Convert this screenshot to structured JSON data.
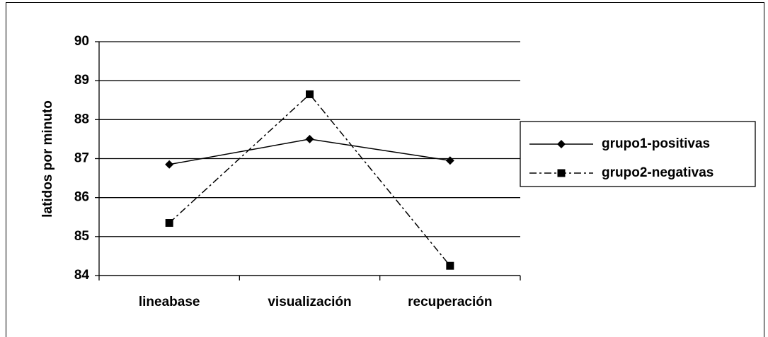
{
  "chart_data": {
    "type": "line",
    "y_label": "latidos por minuto",
    "categories": [
      "lineabase",
      "visualización",
      "recuperación"
    ],
    "series": [
      {
        "name": "grupo1-positivas",
        "color": "#000000",
        "marker": "diamond",
        "line_style": "solid",
        "values": [
          86.85,
          87.5,
          86.95
        ]
      },
      {
        "name": "grupo2-negativas",
        "color": "#000000",
        "marker": "square",
        "line_style": "dashdot",
        "values": [
          85.35,
          88.65,
          84.25
        ]
      }
    ],
    "ylim": [
      84,
      90
    ],
    "yticks": [
      84,
      85,
      86,
      87,
      88,
      89,
      90
    ],
    "grid": true,
    "legend": "right"
  }
}
